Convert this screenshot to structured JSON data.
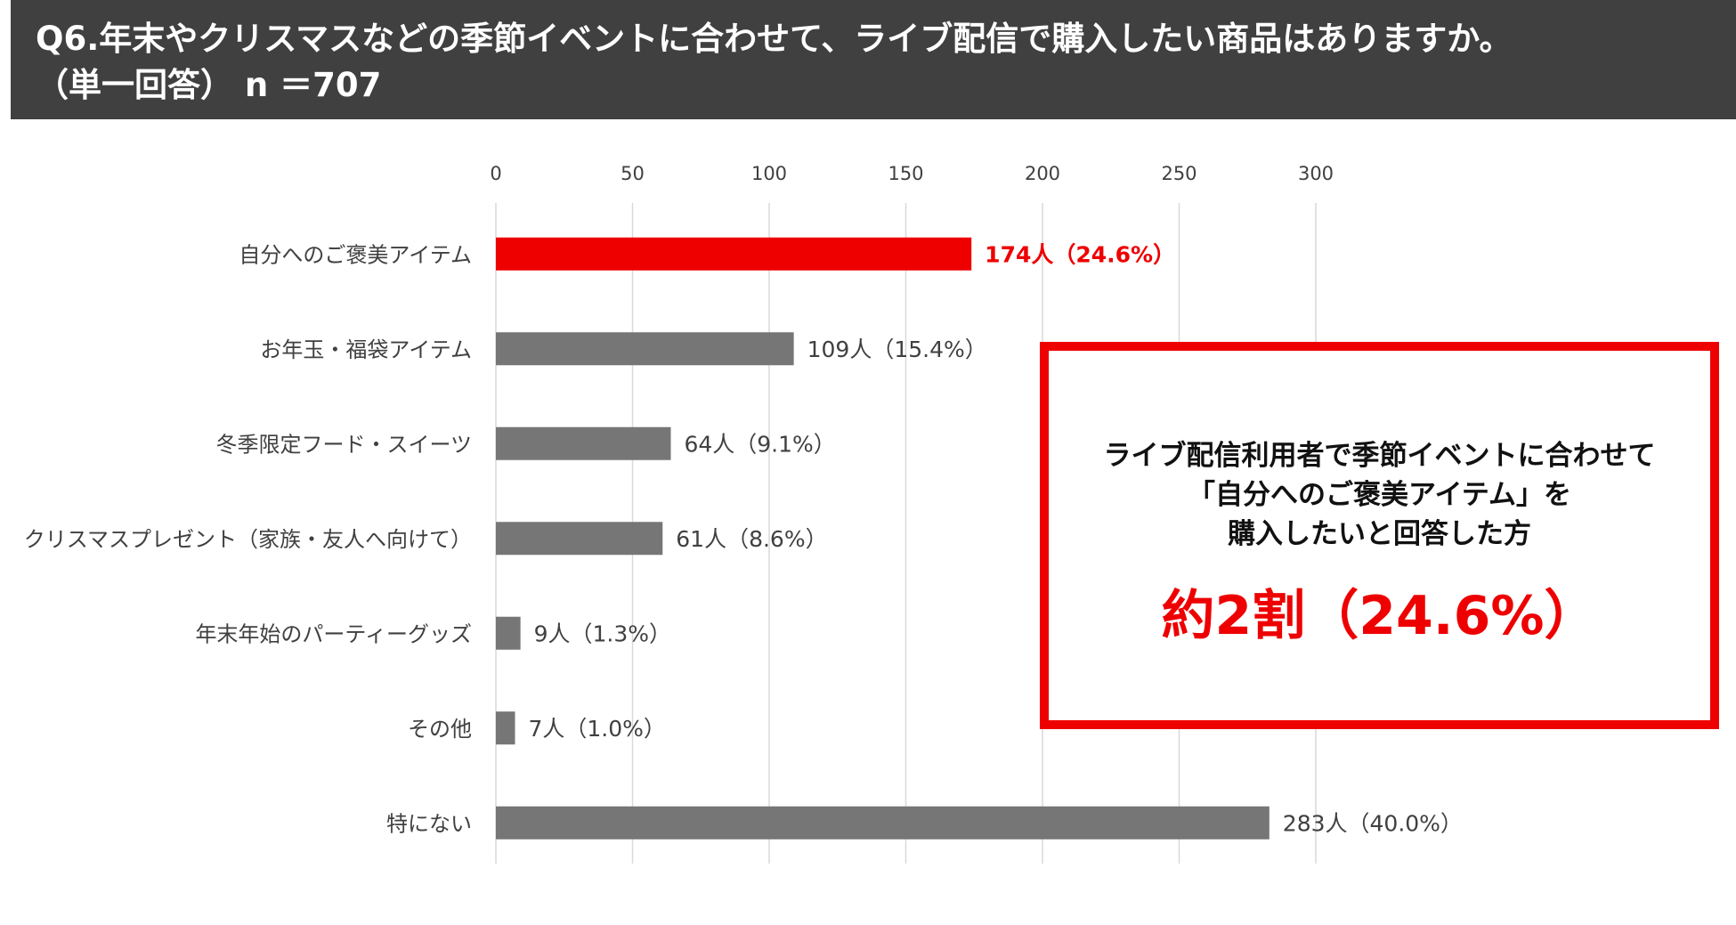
{
  "title": {
    "line1": "Q6.年末やクリスマスなどの季節イベントに合わせて、ライブ配信で購入したい商品はありますか。",
    "line2": "（単一回答） n ＝707"
  },
  "chart_data": {
    "type": "bar",
    "orientation": "horizontal",
    "categories": [
      "自分へのご褒美アイテム",
      "お年玉・福袋アイテム",
      "冬季限定フード・スイーツ",
      "クリスマスプレゼント（家族・友人へ向けて）",
      "年末年始のパーティーグッズ",
      "その他",
      "特にない"
    ],
    "values": [
      174,
      109,
      64,
      61,
      9,
      7,
      283
    ],
    "data_labels": [
      "174人（24.6%）",
      "109人（15.4%）",
      "64人（9.1%）",
      "61人（8.6%）",
      "9人（1.3%）",
      "7人（1.0%）",
      "283人（40.0%）"
    ],
    "xlim": [
      0,
      300
    ],
    "ticks": [
      "0",
      "50",
      "100",
      "150",
      "200",
      "250",
      "300"
    ],
    "tick_values": [
      0,
      50,
      100,
      150,
      200,
      250,
      300
    ],
    "axis_position": "top",
    "grid": true,
    "highlight_index": 0,
    "colors": {
      "bar": "#767676",
      "highlight": "#ee0000",
      "grid": "#d9d9d9",
      "label": "#404040"
    }
  },
  "callout": {
    "line1": "ライブ配信利用者で季節イベントに合わせて",
    "line2": "「自分へのご褒美アイテム」を",
    "line3": "購入したいと回答した方",
    "highlight": "約2割（24.6%）"
  }
}
